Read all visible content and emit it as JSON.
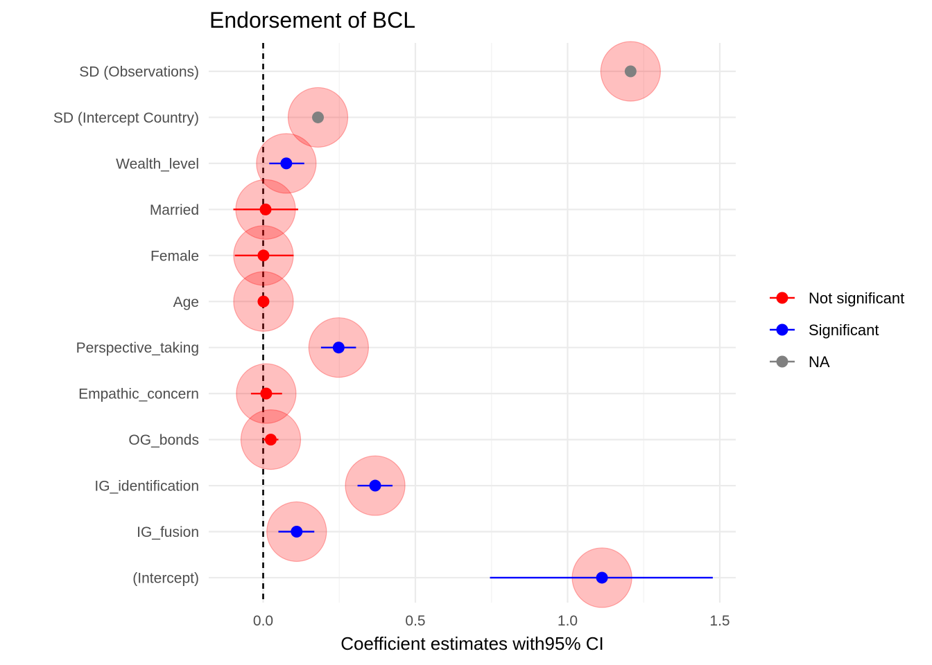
{
  "chart_data": {
    "type": "scatter",
    "title": "Endorsement of BCL",
    "xlabel": "Coefficient estimates with95% CI",
    "ylabel": "",
    "xlim": [
      -0.2,
      1.55
    ],
    "x_ticks": [
      0.0,
      0.5,
      1.0,
      1.5
    ],
    "x_tick_labels": [
      "0.0",
      "0.5",
      "1.0",
      "1.5"
    ],
    "reference_line": {
      "x": 0,
      "style": "dashed"
    },
    "grid": true,
    "legend_position": "right",
    "significance_colors": {
      "Not significant": "#ff0000",
      "Significant": "#0000ff",
      "NA": "#808080"
    },
    "bubble_color": "#ff0000",
    "terms": [
      {
        "label": "SD (Observations)",
        "estimate": 1.207,
        "ci_low": null,
        "ci_high": null,
        "significance": "NA"
      },
      {
        "label": "SD (Intercept Country)",
        "estimate": 0.18,
        "ci_low": null,
        "ci_high": null,
        "significance": "NA"
      },
      {
        "label": "Wealth_level",
        "estimate": 0.076,
        "ci_low": 0.02,
        "ci_high": 0.135,
        "significance": "Significant"
      },
      {
        "label": "Married",
        "estimate": 0.008,
        "ci_low": -0.098,
        "ci_high": 0.115,
        "significance": "Not significant"
      },
      {
        "label": "Female",
        "estimate": 0.001,
        "ci_low": -0.093,
        "ci_high": 0.1,
        "significance": "Not significant"
      },
      {
        "label": "Age",
        "estimate": 0.001,
        "ci_low": -0.01,
        "ci_high": 0.012,
        "significance": "Not significant"
      },
      {
        "label": "Perspective_taking",
        "estimate": 0.248,
        "ci_low": 0.19,
        "ci_high": 0.305,
        "significance": "Significant"
      },
      {
        "label": "Empathic_concern",
        "estimate": 0.01,
        "ci_low": -0.04,
        "ci_high": 0.062,
        "significance": "Not significant"
      },
      {
        "label": "OG_bonds",
        "estimate": 0.025,
        "ci_low": 0.0,
        "ci_high": 0.05,
        "significance": "Not significant"
      },
      {
        "label": "IG_identification",
        "estimate": 0.368,
        "ci_low": 0.31,
        "ci_high": 0.425,
        "significance": "Significant"
      },
      {
        "label": "IG_fusion",
        "estimate": 0.11,
        "ci_low": 0.05,
        "ci_high": 0.168,
        "significance": "Significant"
      },
      {
        "label": "(Intercept)",
        "estimate": 1.113,
        "ci_low": 0.745,
        "ci_high": 1.477,
        "significance": "Significant"
      }
    ],
    "legend": [
      {
        "label": "Not significant",
        "color": "#ff0000"
      },
      {
        "label": "Significant",
        "color": "#0000ff"
      },
      {
        "label": "NA",
        "color": "#808080"
      }
    ]
  }
}
